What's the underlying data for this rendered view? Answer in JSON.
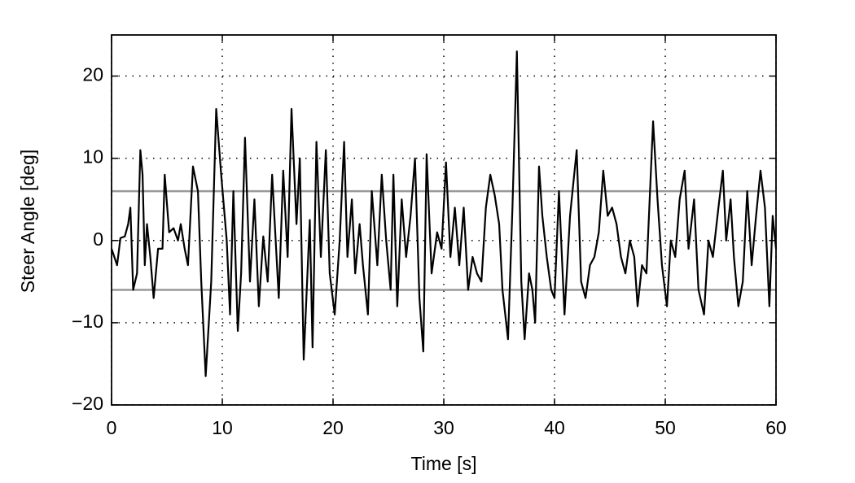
{
  "chart_data": {
    "type": "line",
    "xlabel": "Time [s]",
    "ylabel": "Steer Angle [deg]",
    "x": [
      0,
      0.5,
      0.8,
      1.2,
      1.5,
      1.7,
      1.95,
      2.3,
      2.6,
      2.8,
      3.0,
      3.2,
      3.5,
      3.8,
      4.2,
      4.6,
      4.8,
      5.2,
      5.6,
      6.0,
      6.25,
      6.6,
      6.9,
      7.35,
      7.8,
      8.1,
      8.5,
      9.0,
      9.45,
      9.9,
      10.4,
      10.7,
      11.0,
      11.4,
      11.7,
      12.05,
      12.5,
      12.9,
      13.3,
      13.7,
      14.1,
      14.5,
      15.1,
      15.5,
      15.9,
      16.25,
      16.7,
      17.0,
      17.35,
      17.9,
      18.15,
      18.5,
      18.9,
      19.35,
      19.7,
      20.15,
      20.6,
      21.0,
      21.3,
      21.7,
      22.0,
      22.4,
      22.7,
      23.15,
      23.5,
      24.0,
      24.4,
      24.8,
      25.2,
      25.45,
      25.8,
      26.2,
      26.6,
      27.0,
      27.4,
      27.8,
      28.15,
      28.45,
      28.9,
      29.4,
      29.8,
      30.2,
      30.6,
      31.0,
      31.4,
      31.8,
      32.2,
      32.6,
      33.0,
      33.4,
      33.8,
      34.2,
      34.6,
      35.0,
      35.3,
      35.8,
      36.2,
      36.6,
      37.0,
      37.3,
      37.7,
      38.0,
      38.25,
      38.6,
      38.9,
      39.3,
      39.7,
      40.0,
      40.4,
      40.9,
      41.4,
      42.0,
      42.4,
      42.8,
      43.2,
      43.6,
      44.0,
      44.4,
      44.8,
      45.2,
      45.6,
      46.0,
      46.4,
      46.8,
      47.2,
      47.5,
      47.9,
      48.3,
      48.9,
      49.3,
      49.7,
      50.15,
      50.5,
      50.9,
      51.3,
      51.75,
      52.1,
      52.6,
      53.0,
      53.5,
      53.9,
      54.3,
      54.8,
      55.2,
      55.5,
      55.9,
      56.2,
      56.6,
      57.0,
      57.4,
      57.8,
      58.2,
      58.6,
      59.0,
      59.4,
      59.7,
      60
    ],
    "series": [
      {
        "color": "#000000",
        "values": [
          -1,
          -3,
          0.3,
          0.5,
          2,
          4,
          -6,
          -4,
          11,
          8,
          -3,
          2,
          -2,
          -7,
          -1,
          -1,
          8,
          1,
          1.5,
          0,
          2,
          -1,
          -3,
          9,
          6,
          -5,
          -16.5,
          -5,
          16,
          8,
          0,
          -9,
          6,
          -11,
          -4,
          12.5,
          -5,
          5,
          -8,
          0.5,
          -5,
          8,
          -7,
          8.5,
          -2,
          16,
          2,
          10,
          -14.5,
          2.5,
          -13,
          12,
          -2,
          11,
          -4,
          -9,
          0,
          12,
          -2,
          5,
          -4,
          2,
          -3,
          -9,
          6,
          -3,
          8,
          0,
          -6,
          8,
          -8,
          5,
          -2,
          3,
          10,
          -7,
          -13.5,
          10.5,
          -4,
          1,
          -1,
          9.5,
          -2,
          4,
          -3,
          4,
          -6,
          -2,
          -4,
          -5,
          4,
          8,
          5.5,
          2,
          -6,
          -12,
          4,
          23,
          -5,
          -12,
          -4,
          -6,
          -10,
          9,
          3,
          -2,
          -6,
          -7,
          6,
          -9,
          3,
          11,
          -5,
          -7,
          -3,
          -2,
          1,
          8.5,
          3,
          4,
          2,
          -2,
          -4,
          0,
          -2,
          -8,
          -3,
          -4,
          14.5,
          5,
          -3,
          -8,
          0,
          -2,
          5,
          8.5,
          -1,
          5,
          -6,
          -9,
          0,
          -2,
          4,
          8.5,
          0,
          5,
          -2,
          -8,
          -5,
          6,
          -3,
          3,
          8.5,
          4,
          -8,
          3,
          -1
        ]
      }
    ],
    "hlines": [
      6,
      -6
    ],
    "hline_color": "#999999",
    "xlim": [
      0,
      60
    ],
    "xticks": [
      0,
      10,
      20,
      30,
      40,
      50,
      60
    ],
    "ylim": [
      -20,
      25
    ],
    "yticks": [
      {
        "value": -20,
        "label": "−20"
      },
      {
        "value": -10,
        "label": "−10"
      },
      0,
      10,
      20
    ],
    "grid": true
  }
}
